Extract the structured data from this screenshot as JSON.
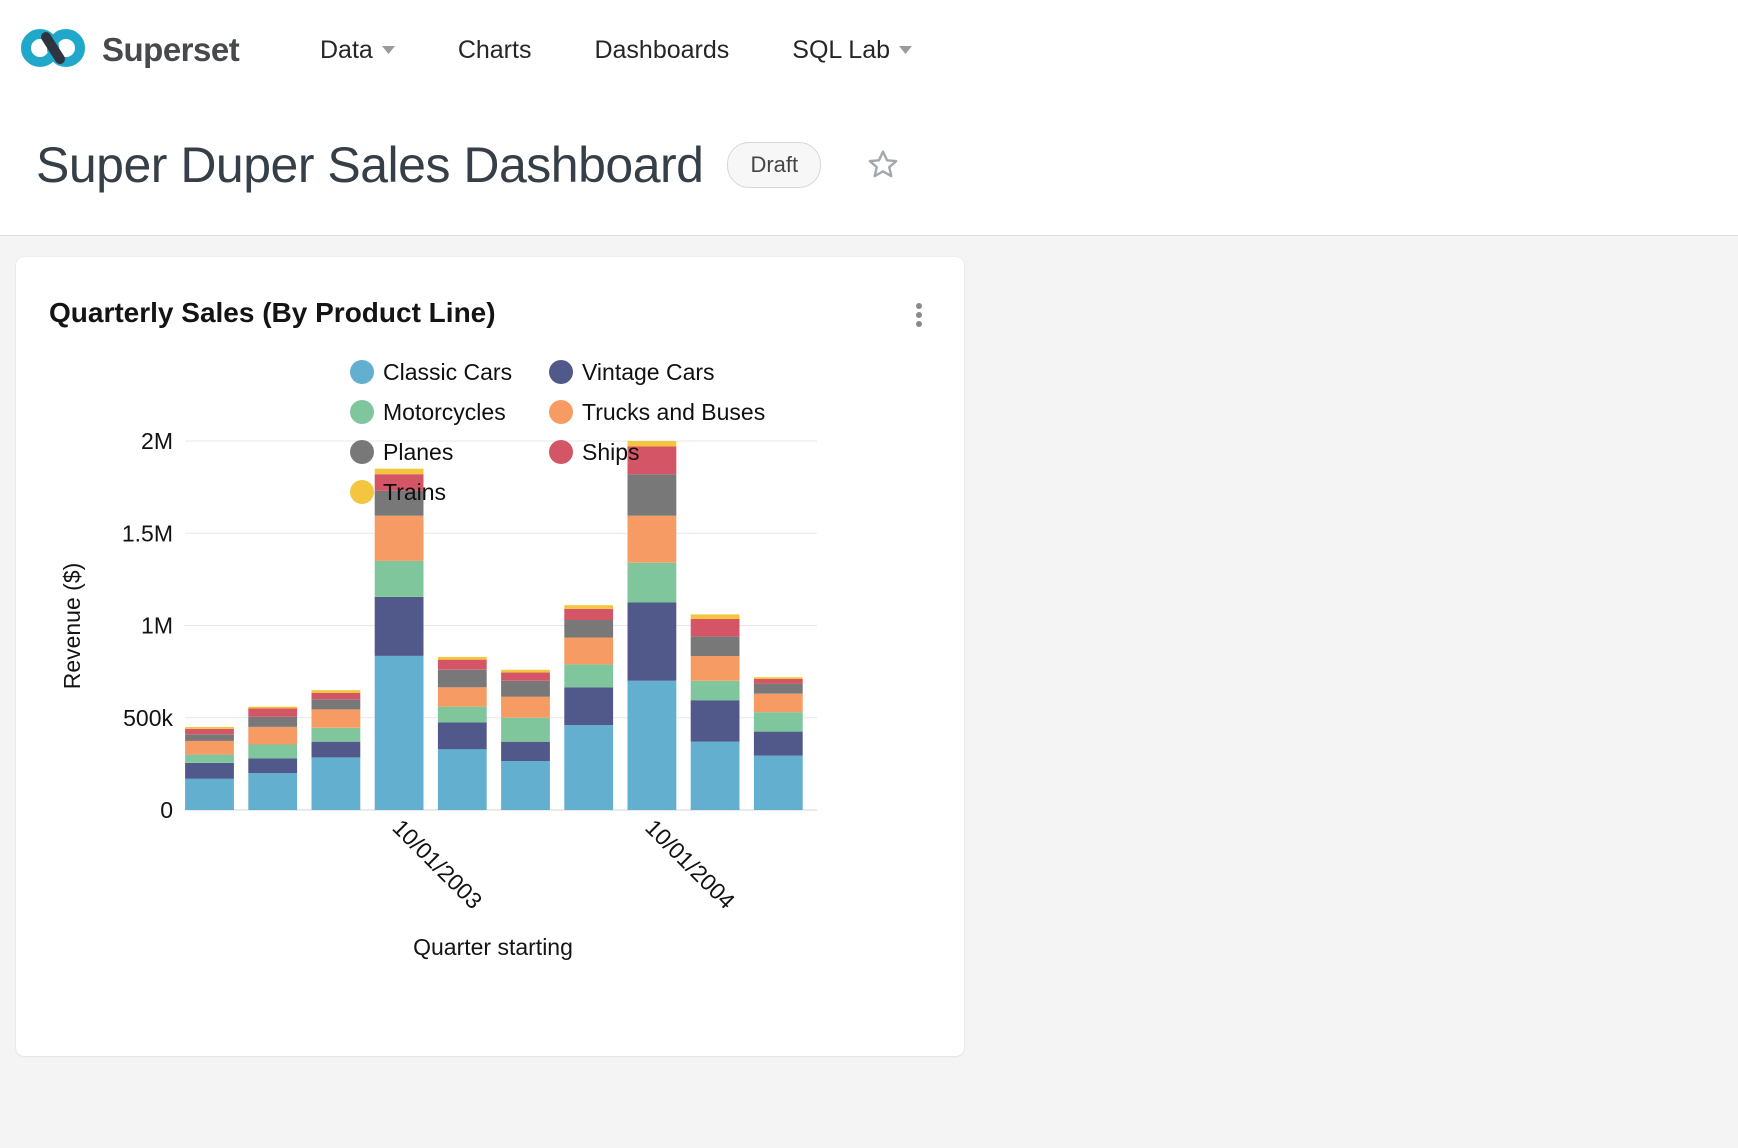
{
  "brand": {
    "name": "Superset",
    "logo_teal": "#20A7C9",
    "logo_dark": "#2e3440"
  },
  "nav": {
    "items": [
      {
        "label": "Data",
        "has_caret": true
      },
      {
        "label": "Charts",
        "has_caret": false
      },
      {
        "label": "Dashboards",
        "has_caret": false
      },
      {
        "label": "SQL Lab",
        "has_caret": true
      }
    ]
  },
  "header": {
    "title": "Super Duper Sales Dashboard",
    "status_badge": "Draft",
    "favorite_icon": "star-outline"
  },
  "card": {
    "title": "Quarterly Sales (By Product Line)",
    "menu_icon": "kebab-vertical"
  },
  "chart_data": {
    "type": "bar",
    "stacked": true,
    "title": "Quarterly Sales (By Product Line)",
    "xlabel": "Quarter starting",
    "ylabel": "Revenue ($)",
    "ylim": [
      0,
      2000000
    ],
    "grid": true,
    "legend_position": "top",
    "y_ticks": [
      {
        "value": 0,
        "label": "0"
      },
      {
        "value": 500000,
        "label": "500k"
      },
      {
        "value": 1000000,
        "label": "1M"
      },
      {
        "value": 1500000,
        "label": "1.5M"
      },
      {
        "value": 2000000,
        "label": "2M"
      }
    ],
    "categories": [
      "",
      "",
      "",
      "10/01/2003",
      "",
      "",
      "",
      "10/01/2004",
      "",
      ""
    ],
    "x_tick_labels": [
      {
        "index": 3,
        "label": "10/01/2003"
      },
      {
        "index": 7,
        "label": "10/01/2004"
      }
    ],
    "series": [
      {
        "name": "Classic Cars",
        "color": "#63AFD0",
        "values": [
          170000,
          200000,
          285000,
          835000,
          330000,
          265000,
          460000,
          700000,
          370000,
          295000
        ]
      },
      {
        "name": "Vintage Cars",
        "color": "#50598A",
        "values": [
          85000,
          80000,
          85000,
          320000,
          145000,
          105000,
          205000,
          425000,
          225000,
          130000
        ]
      },
      {
        "name": "Motorcycles",
        "color": "#7FC69D",
        "values": [
          45000,
          75000,
          75000,
          195000,
          85000,
          130000,
          125000,
          215000,
          105000,
          105000
        ]
      },
      {
        "name": "Trucks and Buses",
        "color": "#F69B63",
        "values": [
          75000,
          95000,
          100000,
          245000,
          105000,
          115000,
          145000,
          255000,
          135000,
          100000
        ]
      },
      {
        "name": "Planes",
        "color": "#787878",
        "values": [
          35000,
          55000,
          55000,
          135000,
          95000,
          85000,
          95000,
          225000,
          105000,
          55000
        ]
      },
      {
        "name": "Ships",
        "color": "#D45566",
        "values": [
          30000,
          45000,
          35000,
          90000,
          55000,
          45000,
          60000,
          150000,
          95000,
          25000
        ]
      },
      {
        "name": "Trains",
        "color": "#F4C63F",
        "values": [
          10000,
          10000,
          15000,
          30000,
          15000,
          15000,
          20000,
          30000,
          25000,
          10000
        ]
      }
    ]
  }
}
